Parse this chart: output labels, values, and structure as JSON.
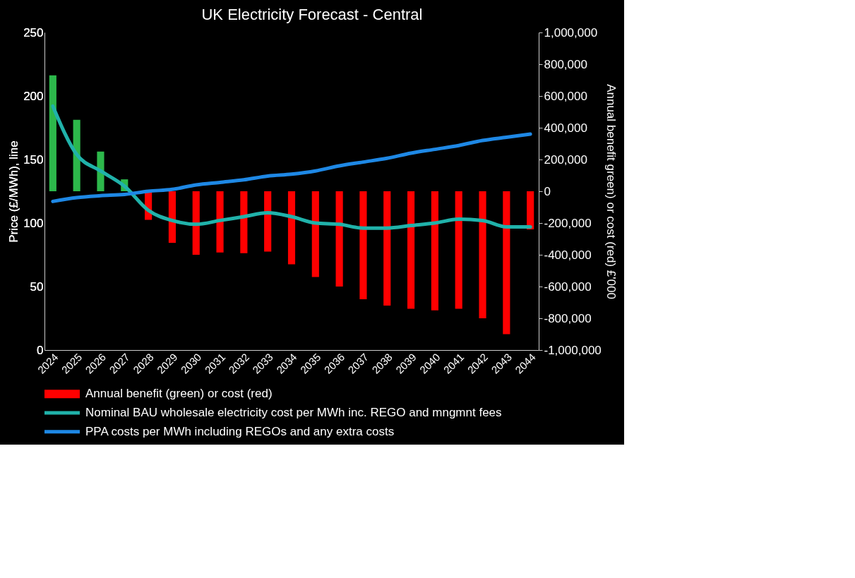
{
  "chart_data": {
    "type": "bar",
    "title": "UK Electricity Forecast - Central",
    "ylabel": "Price (£/MWh), line",
    "y2label": "Annual benefit green) or cost (red) £'000",
    "categories": [
      "2024",
      "2025",
      "2026",
      "2027",
      "2028",
      "2029",
      "2030",
      "2031",
      "2032",
      "2033",
      "2034",
      "2035",
      "2036",
      "2037",
      "2038",
      "2039",
      "2040",
      "2041",
      "2042",
      "2043",
      "2044"
    ],
    "series": [
      {
        "name": "Annual benefit (green) or cost (red)",
        "axis": "y2",
        "color": "#ff0000",
        "colors": [
          "#2db84b",
          "#2db84b",
          "#2db84b",
          "#2db84b",
          "#ff0000",
          "#ff0000",
          "#ff0000",
          "#ff0000",
          "#ff0000",
          "#ff0000",
          "#ff0000",
          "#ff0000",
          "#ff0000",
          "#ff0000",
          "#ff0000",
          "#ff0000",
          "#ff0000",
          "#ff0000",
          "#ff0000",
          "#ff0000",
          "#ff0000"
        ],
        "values": [
          730000,
          450000,
          250000,
          75000,
          -180000,
          -325000,
          -400000,
          -385000,
          -390000,
          -380000,
          -460000,
          -540000,
          -600000,
          -680000,
          -720000,
          -740000,
          -750000,
          -740000,
          -800000,
          -900000,
          -240000
        ]
      },
      {
        "name": "Nominal BAU wholesale electricity cost per MWh inc. REGO and mngmnt fees",
        "type": "line",
        "color": "#20b2aa",
        "values": [
          192,
          154,
          141,
          129,
          110,
          102,
          99,
          102,
          105,
          108,
          105,
          100,
          99,
          96,
          96,
          98,
          100,
          103,
          102,
          97,
          97
        ]
      },
      {
        "name": "PPA costs per MWh including REGOs and any extra costs",
        "type": "line",
        "color": "#1e88e5",
        "values": [
          117,
          120,
          121.5,
          122.5,
          125,
          126.5,
          130,
          132,
          134,
          137,
          138.5,
          141,
          145,
          148,
          151,
          155,
          158,
          161,
          165,
          167.5,
          170
        ]
      }
    ],
    "ylim": [
      0,
      250
    ],
    "yticks": [
      0,
      50,
      100,
      150,
      200,
      250
    ],
    "y2lim": [
      -1000000,
      1000000
    ],
    "y2ticks": [
      {
        "value": -1000000,
        "label": "-1,000,000"
      },
      {
        "value": -800000,
        "label": "-800,000"
      },
      {
        "value": -600000,
        "label": "-600,000"
      },
      {
        "value": -400000,
        "label": "-400,000"
      },
      {
        "value": -200000,
        "label": "-200,000"
      },
      0,
      {
        "value": 200000,
        "label": "200,000"
      },
      {
        "value": 400000,
        "label": "400,000"
      },
      {
        "value": 600000,
        "label": "600,000"
      },
      {
        "value": 800000,
        "label": "800,000"
      },
      {
        "value": 1000000,
        "label": "1,000,000"
      }
    ],
    "grid": false,
    "legend": "bottom",
    "line_style": "solid",
    "marker": "none"
  }
}
